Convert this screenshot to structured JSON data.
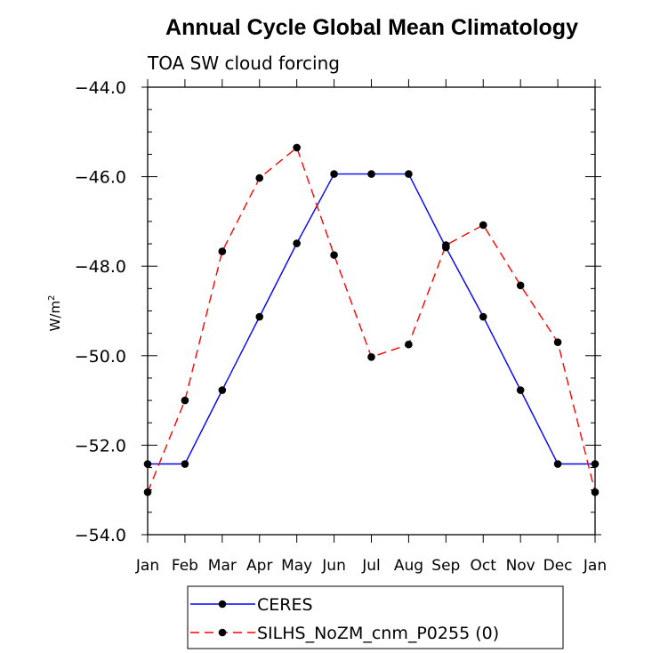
{
  "chart_data": {
    "type": "line",
    "title": "Annual Cycle Global Mean Climatology",
    "subtitle": "TOA SW cloud forcing",
    "xlabel": "",
    "ylabel": "W/m",
    "ylabel_superscript": "2",
    "categories": [
      "Jan",
      "Feb",
      "Mar",
      "Apr",
      "May",
      "Jun",
      "Jul",
      "Aug",
      "Sep",
      "Oct",
      "Nov",
      "Dec",
      "Jan"
    ],
    "ylim": [
      -54.0,
      -44.0
    ],
    "yticks": [
      -54.0,
      -52.0,
      -50.0,
      -48.0,
      -46.0,
      -44.0
    ],
    "ytick_labels": [
      "−54.0",
      "−52.0",
      "−50.0",
      "−48.0",
      "−46.0",
      "−44.0"
    ],
    "grid": false,
    "legend_position": "bottom-center",
    "series": [
      {
        "name": "CERES",
        "color": "#0000ff",
        "dash": "solid",
        "marker": "filled-circle",
        "values": [
          -52.42,
          -52.42,
          -50.77,
          -49.13,
          -47.49,
          -45.94,
          -45.94,
          -45.94,
          -47.58,
          -49.13,
          -50.77,
          -52.42,
          -52.42
        ]
      },
      {
        "name": "SILHS_NoZM_cnm_P0255 (0)",
        "color": "#ff0000",
        "dash": "dashed",
        "marker": "filled-circle",
        "values": [
          -53.05,
          -51.0,
          -47.67,
          -46.03,
          -45.35,
          -47.75,
          -50.03,
          -49.75,
          -47.53,
          -47.08,
          -48.43,
          -49.7,
          -53.05
        ]
      }
    ]
  }
}
